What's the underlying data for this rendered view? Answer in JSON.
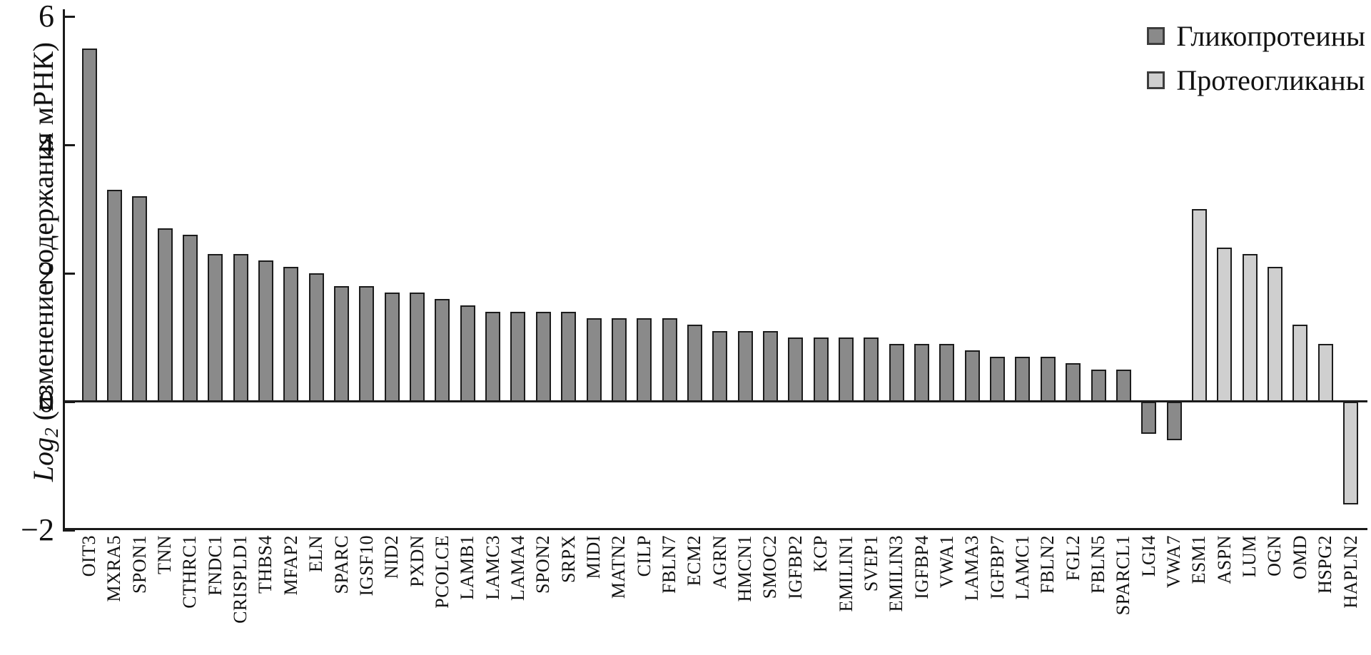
{
  "figure": {
    "background_color": "#ffffff",
    "axis_color": "#1a1a1a",
    "bar_border_color": "#1c1c1c"
  },
  "chart_data": {
    "type": "bar",
    "title": "",
    "xlabel": "",
    "ylabel": "Log2 (изменение содержания мРНК)",
    "ylabel_parts": {
      "italic": "Log",
      "sub": "2",
      "rest": " (изменение содержания мРНК)"
    },
    "ylim": [
      -2,
      6
    ],
    "yticks": [
      6,
      4,
      2,
      0,
      -2
    ],
    "grid": false,
    "legend_position": "top-right",
    "legend": [
      {
        "id": "glyco",
        "label": "Гликопротеины",
        "color": "#8a8a8a",
        "border": "#3d3d3d"
      },
      {
        "id": "proteo",
        "label": "Протеогликаны",
        "color": "#cfcfcf",
        "border": "#3d3d3d"
      }
    ],
    "items": [
      {
        "label": "OIT3",
        "value": 5.5,
        "group": "glyco"
      },
      {
        "label": "MXRA5",
        "value": 3.3,
        "group": "glyco"
      },
      {
        "label": "SPON1",
        "value": 3.2,
        "group": "glyco"
      },
      {
        "label": "TNN",
        "value": 2.7,
        "group": "glyco"
      },
      {
        "label": "CTHRC1",
        "value": 2.6,
        "group": "glyco"
      },
      {
        "label": "FNDC1",
        "value": 2.3,
        "group": "glyco"
      },
      {
        "label": "CRISPLD1",
        "value": 2.3,
        "group": "glyco"
      },
      {
        "label": "THBS4",
        "value": 2.2,
        "group": "glyco"
      },
      {
        "label": "MFAP2",
        "value": 2.1,
        "group": "glyco"
      },
      {
        "label": "ELN",
        "value": 2.0,
        "group": "glyco"
      },
      {
        "label": "SPARC",
        "value": 1.8,
        "group": "glyco"
      },
      {
        "label": "IGSF10",
        "value": 1.8,
        "group": "glyco"
      },
      {
        "label": "NID2",
        "value": 1.7,
        "group": "glyco"
      },
      {
        "label": "PXDN",
        "value": 1.7,
        "group": "glyco"
      },
      {
        "label": "PCOLCE",
        "value": 1.6,
        "group": "glyco"
      },
      {
        "label": "LAMB1",
        "value": 1.5,
        "group": "glyco"
      },
      {
        "label": "LAMC3",
        "value": 1.4,
        "group": "glyco"
      },
      {
        "label": "LAMA4",
        "value": 1.4,
        "group": "glyco"
      },
      {
        "label": "SPON2",
        "value": 1.4,
        "group": "glyco"
      },
      {
        "label": "SRPX",
        "value": 1.4,
        "group": "glyco"
      },
      {
        "label": "MIDI",
        "value": 1.3,
        "group": "glyco"
      },
      {
        "label": "MATN2",
        "value": 1.3,
        "group": "glyco"
      },
      {
        "label": "CILP",
        "value": 1.3,
        "group": "glyco"
      },
      {
        "label": "FBLN7",
        "value": 1.3,
        "group": "glyco"
      },
      {
        "label": "ECM2",
        "value": 1.2,
        "group": "glyco"
      },
      {
        "label": "AGRN",
        "value": 1.1,
        "group": "glyco"
      },
      {
        "label": "HMCN1",
        "value": 1.1,
        "group": "glyco"
      },
      {
        "label": "SMOC2",
        "value": 1.1,
        "group": "glyco"
      },
      {
        "label": "IGFBP2",
        "value": 1.0,
        "group": "glyco"
      },
      {
        "label": "KCP",
        "value": 1.0,
        "group": "glyco"
      },
      {
        "label": "EMILIN1",
        "value": 1.0,
        "group": "glyco"
      },
      {
        "label": "SVEP1",
        "value": 1.0,
        "group": "glyco"
      },
      {
        "label": "EMILIN3",
        "value": 0.9,
        "group": "glyco"
      },
      {
        "label": "IGFBP4",
        "value": 0.9,
        "group": "glyco"
      },
      {
        "label": "VWA1",
        "value": 0.9,
        "group": "glyco"
      },
      {
        "label": "LAMA3",
        "value": 0.8,
        "group": "glyco"
      },
      {
        "label": "IGFBP7",
        "value": 0.7,
        "group": "glyco"
      },
      {
        "label": "LAMC1",
        "value": 0.7,
        "group": "glyco"
      },
      {
        "label": "FBLN2",
        "value": 0.7,
        "group": "glyco"
      },
      {
        "label": "FGL2",
        "value": 0.6,
        "group": "glyco"
      },
      {
        "label": "FBLN5",
        "value": 0.5,
        "group": "glyco"
      },
      {
        "label": "SPARCL1",
        "value": 0.5,
        "group": "glyco"
      },
      {
        "label": "LGI4",
        "value": -0.5,
        "group": "glyco"
      },
      {
        "label": "VWA7",
        "value": -0.6,
        "group": "glyco"
      },
      {
        "label": "ESM1",
        "value": 3.0,
        "group": "proteo"
      },
      {
        "label": "ASPN",
        "value": 2.4,
        "group": "proteo"
      },
      {
        "label": "LUM",
        "value": 2.3,
        "group": "proteo"
      },
      {
        "label": "OGN",
        "value": 2.1,
        "group": "proteo"
      },
      {
        "label": "OMD",
        "value": 1.2,
        "group": "proteo"
      },
      {
        "label": "HSPG2",
        "value": 0.9,
        "group": "proteo"
      },
      {
        "label": "HAPLN2",
        "value": -1.6,
        "group": "proteo"
      }
    ]
  }
}
